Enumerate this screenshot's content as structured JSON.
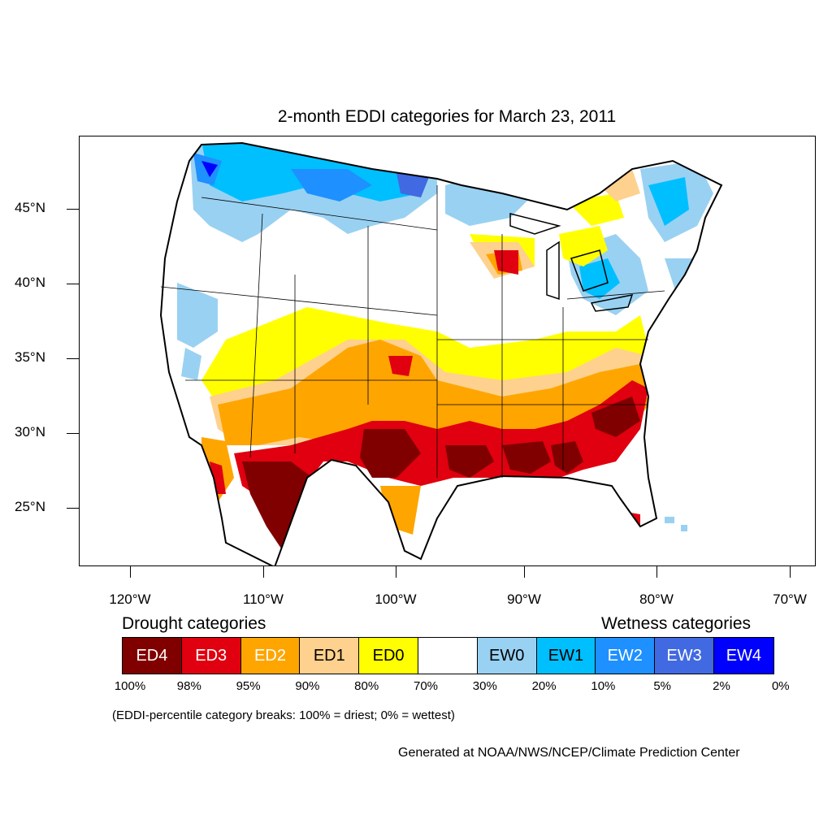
{
  "title": "2-month EDDI categories for March 23, 2011",
  "latitude_labels": [
    "45°N",
    "40°N",
    "35°N",
    "30°N",
    "25°N"
  ],
  "longitude_labels": [
    "120°W",
    "110°W",
    "100°W",
    "90°W",
    "80°W",
    "70°W"
  ],
  "legend": {
    "drought_heading": "Drought categories",
    "wetness_heading": "Wetness categories",
    "categories": [
      {
        "label": "ED4",
        "color": "#800000",
        "text_color": "#ffffff"
      },
      {
        "label": "ED3",
        "color": "#e0000f",
        "text_color": "#ffffff"
      },
      {
        "label": "ED2",
        "color": "#ffa500",
        "text_color": "#ffffff"
      },
      {
        "label": "ED1",
        "color": "#fed18e",
        "text_color": "#000000"
      },
      {
        "label": "ED0",
        "color": "#ffff00",
        "text_color": "#000000"
      },
      {
        "label": "",
        "color": "#ffffff",
        "text_color": "#000000"
      },
      {
        "label": "EW0",
        "color": "#99d1f2",
        "text_color": "#000000"
      },
      {
        "label": "EW1",
        "color": "#00bfff",
        "text_color": "#000000"
      },
      {
        "label": "EW2",
        "color": "#1e90ff",
        "text_color": "#ffffff"
      },
      {
        "label": "EW3",
        "color": "#4169e1",
        "text_color": "#ffffff"
      },
      {
        "label": "EW4",
        "color": "#0000ff",
        "text_color": "#ffffff"
      }
    ],
    "percentile_breaks": [
      "100%",
      "98%",
      "95%",
      "90%",
      "80%",
      "70%",
      "30%",
      "20%",
      "10%",
      "5%",
      "2%",
      "0%"
    ]
  },
  "note": "(EDDI-percentile category breaks: 100% = driest; 0% = wettest)",
  "credit": "Generated at NOAA/NWS/NCEP/Climate Prediction Center"
}
